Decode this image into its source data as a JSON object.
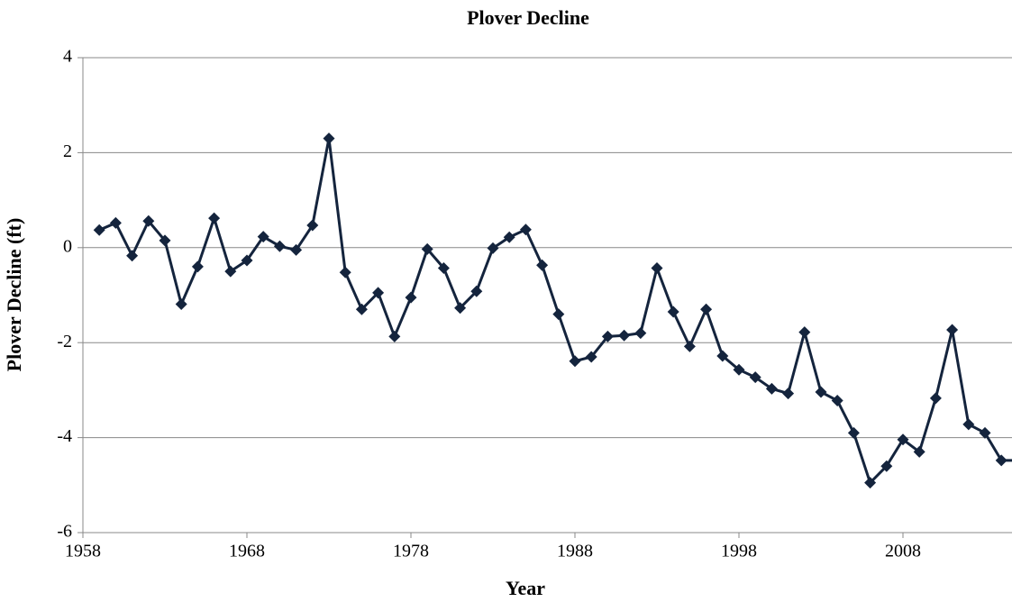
{
  "chart_data": {
    "type": "line",
    "title": "Plover Decline",
    "x_label": "Year",
    "y_label": "Plover Decline (ft)",
    "x": [
      1959,
      1960,
      1961,
      1962,
      1963,
      1964,
      1965,
      1966,
      1967,
      1968,
      1969,
      1970,
      1971,
      1972,
      1973,
      1974,
      1975,
      1976,
      1977,
      1978,
      1979,
      1980,
      1981,
      1982,
      1983,
      1984,
      1985,
      1986,
      1987,
      1988,
      1989,
      1990,
      1991,
      1992,
      1993,
      1994,
      1995,
      1996,
      1997,
      1998,
      1999,
      2000,
      2001,
      2002,
      2003,
      2004,
      2005,
      2006,
      2007,
      2008,
      2009,
      2010,
      2011,
      2012,
      2013,
      2014,
      2015
    ],
    "series": [
      {
        "name": "Plover Decline",
        "color": "#14243d",
        "values": [
          0.37,
          0.52,
          -0.17,
          0.56,
          0.15,
          -1.19,
          -0.4,
          0.62,
          -0.5,
          -0.27,
          0.23,
          0.03,
          -0.05,
          0.47,
          2.3,
          -0.52,
          -1.3,
          -0.95,
          -1.87,
          -1.05,
          -0.03,
          -0.43,
          -1.27,
          -0.92,
          -0.01,
          0.22,
          0.38,
          -0.37,
          -1.4,
          -2.39,
          -2.3,
          -1.87,
          -1.85,
          -1.8,
          -0.43,
          -1.35,
          -2.08,
          -1.3,
          -2.28,
          -2.57,
          -2.73,
          -2.97,
          -3.07,
          -1.78,
          -3.04,
          -3.22,
          -3.9,
          -4.95,
          -4.6,
          -4.04,
          -4.3,
          -3.17,
          -1.73,
          -3.72,
          -3.9,
          -4.48,
          -4.48
        ]
      }
    ],
    "xlim": [
      1958,
      2015
    ],
    "xticks": [
      1958,
      1968,
      1978,
      1988,
      1998,
      2008
    ],
    "ylim": [
      -6,
      4
    ],
    "yticks": [
      -6,
      -4,
      -2,
      0,
      2,
      4
    ],
    "grid": true
  }
}
